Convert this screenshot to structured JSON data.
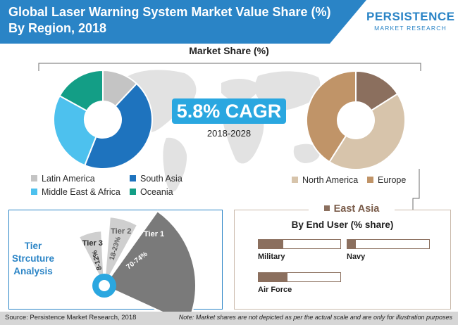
{
  "header": {
    "title_line1": "Global Laser Warning System Market Value Share (%)",
    "title_line2": "By Region, 2018",
    "logo_main": "PERSISTENCE",
    "logo_sub": "MARKET RESEARCH"
  },
  "market_share_title": "Market Share (%)",
  "cagr": {
    "value": "5.8% CAGR",
    "period": "2018-2028"
  },
  "tier_section_label": [
    "Tier",
    "Strcuture",
    "Analysis"
  ],
  "east_asia": {
    "title": "East Asia",
    "subtitle": "By End User (% share)"
  },
  "footer": {
    "source": "Source: Persistence Market Research, 2018",
    "note": "Note: Market shares are not depicted as per the actual scale and are only for illustration purposes"
  },
  "colors": {
    "title_band": "#2a84c6",
    "latin_america": "#c4c4c4",
    "south_asia": "#1e73be",
    "middle_east_africa": "#4dc1ee",
    "oceania": "#139e86",
    "north_america": "#d7c4ab",
    "europe": "#c09468",
    "east_asia": "#8b6f5e",
    "tier": "#7a7a7a",
    "tier_light": "#cfcfcf"
  },
  "chart_data": [
    {
      "type": "pie",
      "title": "",
      "donut": true,
      "series": [
        {
          "name": "Latin America",
          "value": 12
        },
        {
          "name": "South Asia",
          "value": 44
        },
        {
          "name": "Middle East & Africa",
          "value": 27
        },
        {
          "name": "Oceania",
          "value": 17
        }
      ],
      "legend": "bottom"
    },
    {
      "type": "pie",
      "title": "",
      "donut": true,
      "series": [
        {
          "name": "East Asia",
          "value": 16
        },
        {
          "name": "North America",
          "value": 43
        },
        {
          "name": "Europe",
          "value": 41
        }
      ],
      "legend": "bottom"
    },
    {
      "type": "bar",
      "title": "By End User (% share)",
      "categories": [
        "Military",
        "Navy",
        "Air Force"
      ],
      "values": [
        30,
        10,
        35
      ],
      "ylim": [
        0,
        100
      ]
    },
    {
      "type": "pie",
      "title": "Tier Strcuture Analysis",
      "categories": [
        "Tier 1",
        "Tier 2",
        "Tier 3"
      ],
      "series": [
        {
          "name": "Tier 1",
          "label": "70-74%"
        },
        {
          "name": "Tier 2",
          "label": "18-23%"
        },
        {
          "name": "Tier 3",
          "label": "8-12%"
        }
      ]
    }
  ]
}
